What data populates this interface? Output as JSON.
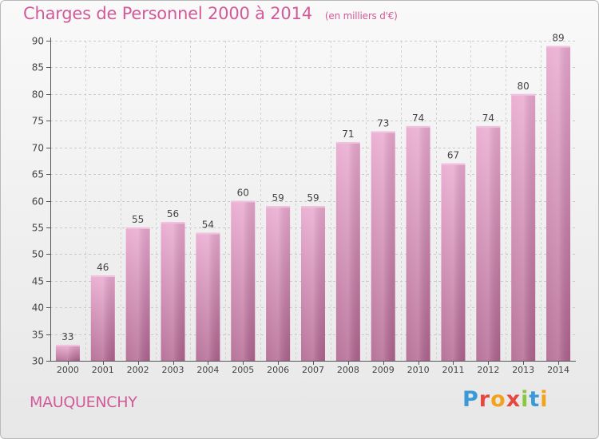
{
  "chart_data": {
    "type": "bar",
    "title": "Charges de Personnel 2000 à 2014",
    "subtitle": "(en milliers d'€)",
    "categories": [
      "2000",
      "2001",
      "2002",
      "2003",
      "2004",
      "2005",
      "2006",
      "2007",
      "2008",
      "2009",
      "2010",
      "2011",
      "2012",
      "2013",
      "2014"
    ],
    "values": [
      33,
      46,
      55,
      56,
      54,
      60,
      59,
      59,
      71,
      73,
      74,
      67,
      74,
      80,
      89
    ],
    "ylim": [
      30,
      90
    ],
    "yticks": [
      30,
      35,
      40,
      45,
      50,
      55,
      60,
      65,
      70,
      75,
      80,
      85,
      90
    ],
    "grid": true,
    "bar_color": "#d983b4"
  },
  "footer": {
    "place": "MAUQUENCHY",
    "logo_letters": [
      {
        "ch": "P",
        "color": "#3a9ad9"
      },
      {
        "ch": "r",
        "color": "#e8473f"
      },
      {
        "ch": "o",
        "color": "#f2a31b"
      },
      {
        "ch": "x",
        "color": "#e8473f"
      },
      {
        "ch": "i",
        "color": "#8cc63f"
      },
      {
        "ch": "t",
        "color": "#3a9ad9"
      },
      {
        "ch": "i",
        "color": "#f2a31b"
      }
    ]
  }
}
